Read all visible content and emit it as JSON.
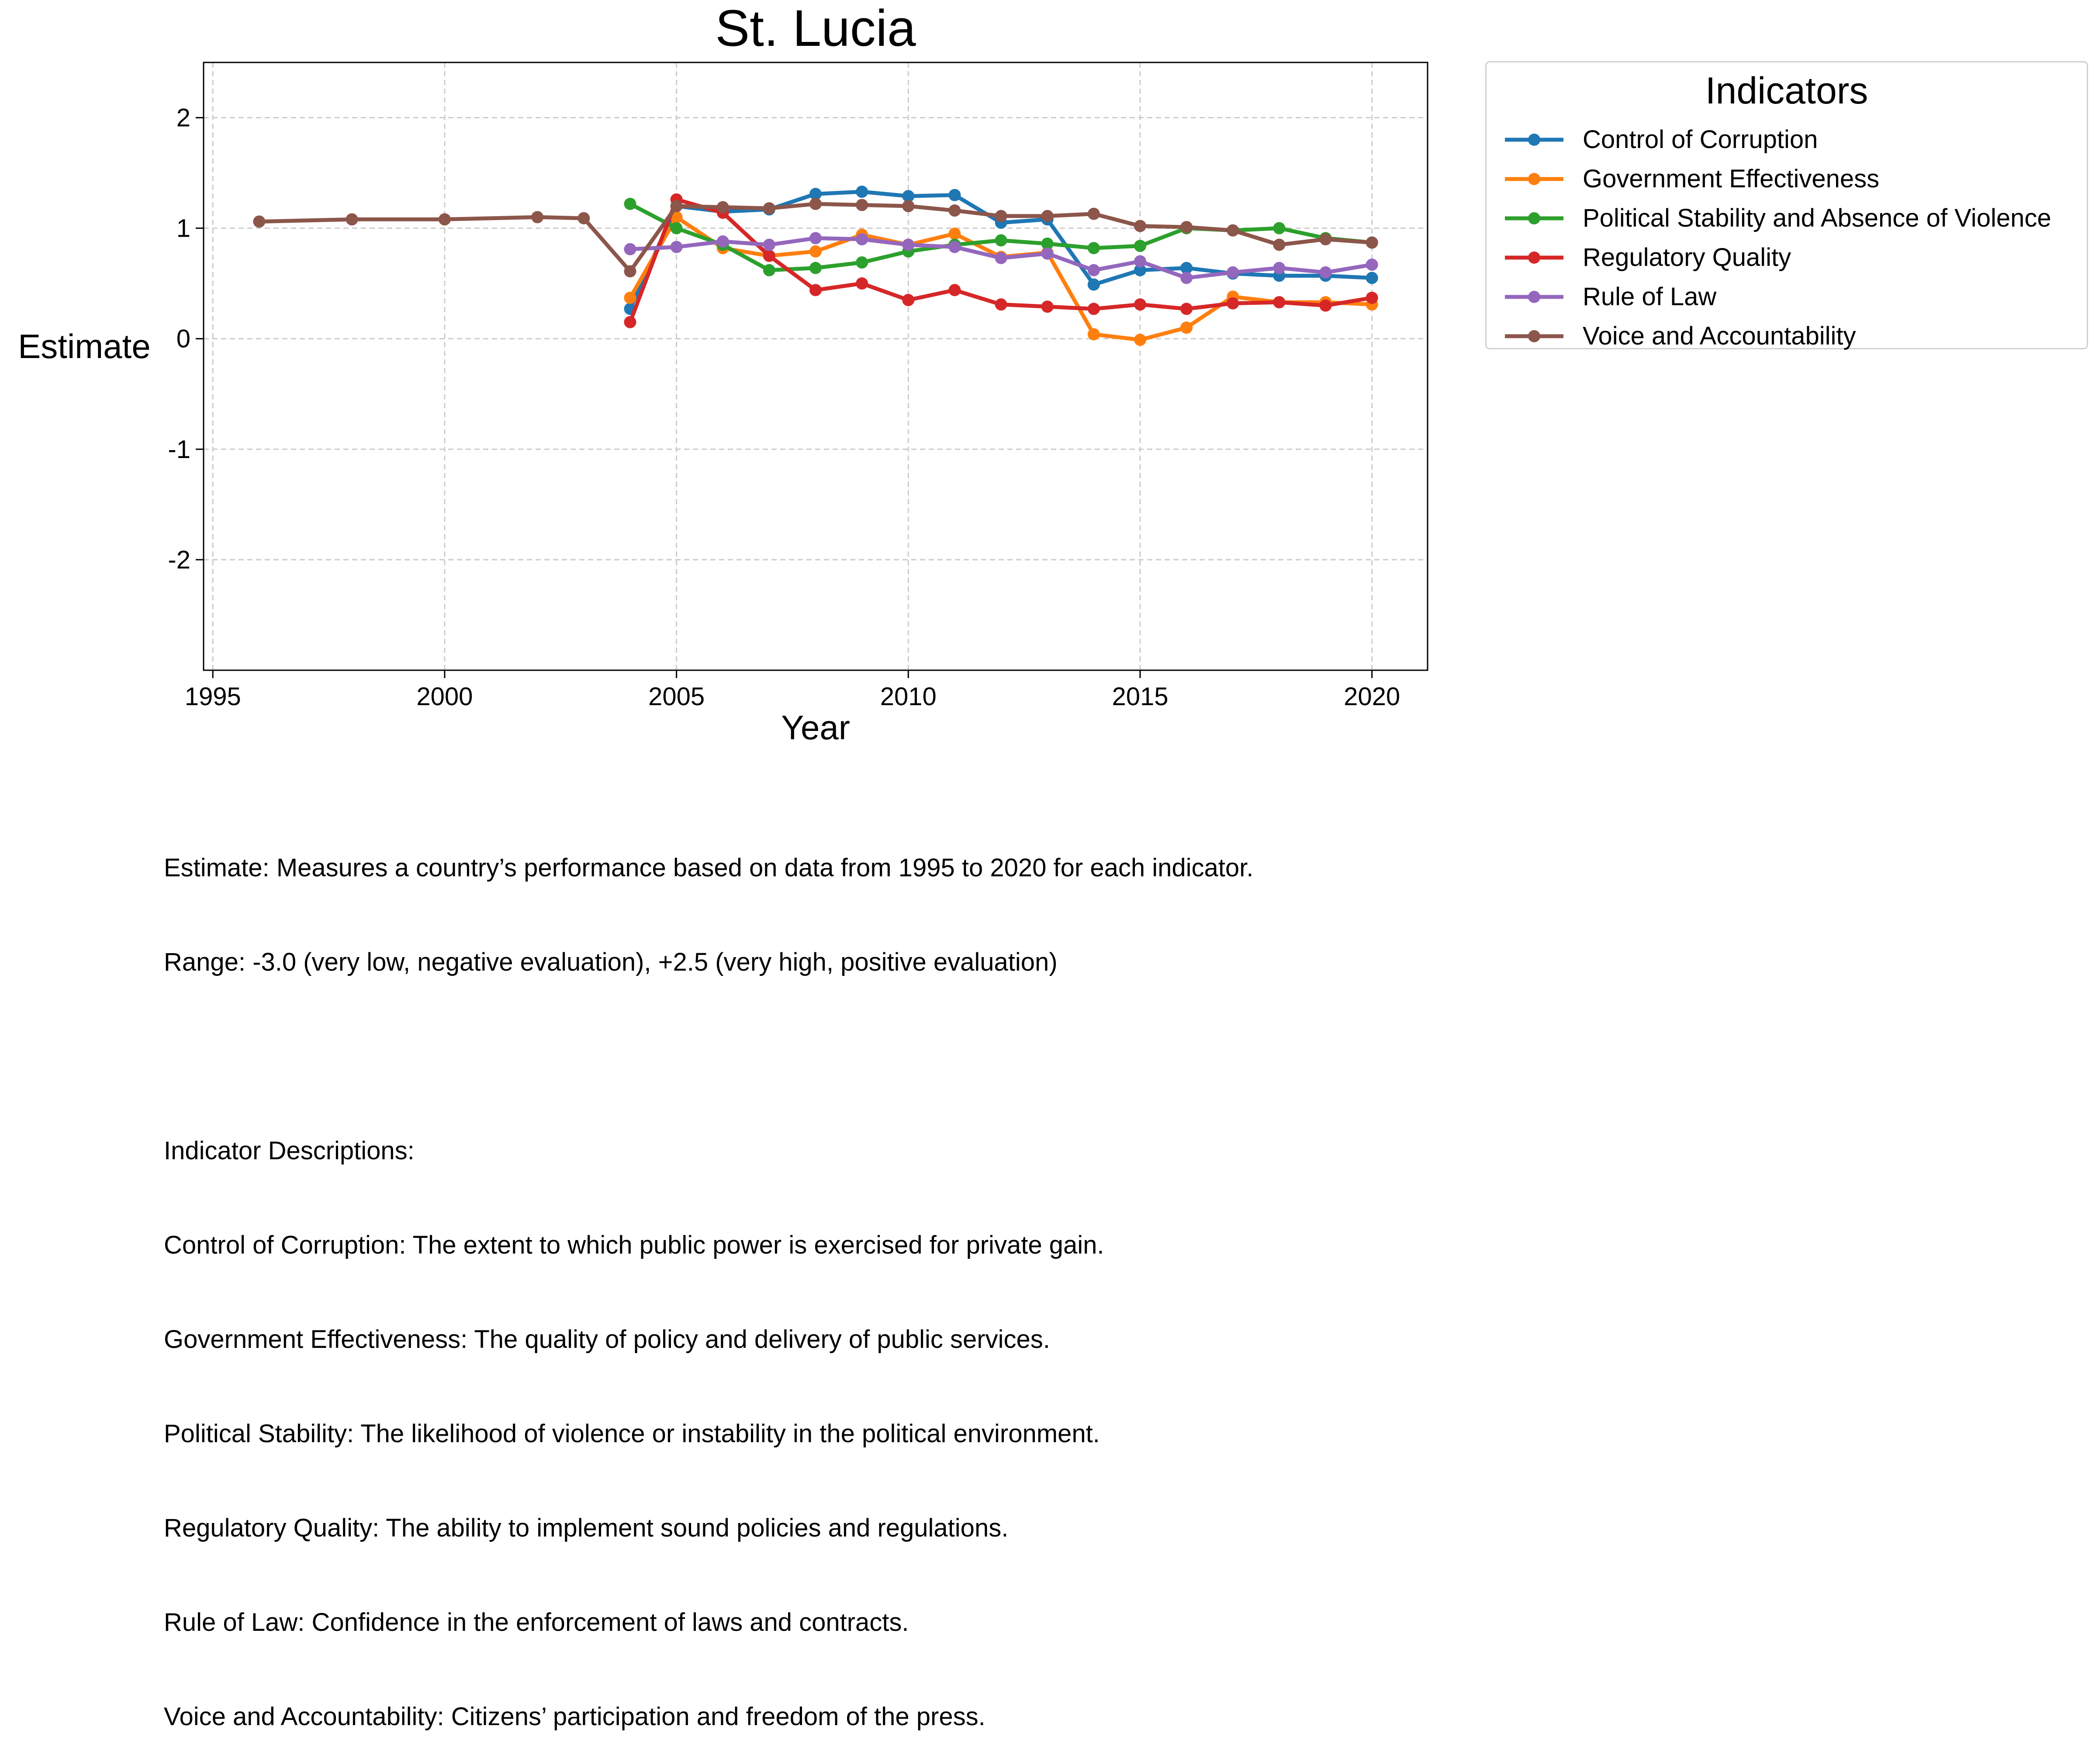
{
  "chart_data": {
    "type": "line",
    "title": "St. Lucia",
    "xlabel": "Year",
    "ylabel": "Estimate",
    "xlim": [
      1994.8,
      2021.2
    ],
    "ylim": [
      -3.0,
      2.5
    ],
    "xticks": [
      "1995",
      "2000",
      "2005",
      "2010",
      "2015",
      "2020"
    ],
    "yticks": [
      "-2",
      "-1",
      "0",
      "1",
      "2"
    ],
    "grid": true,
    "legend_title": "Indicators",
    "legend_position": "outside-right",
    "series": [
      {
        "name": "Control of Corruption",
        "color": "#1f77b4",
        "x": [
          2004,
          2005,
          2006,
          2007,
          2008,
          2009,
          2010,
          2011,
          2012,
          2013,
          2014,
          2015,
          2016,
          2017,
          2018,
          2019,
          2020
        ],
        "y": [
          0.27,
          1.2,
          1.15,
          1.17,
          1.31,
          1.33,
          1.29,
          1.3,
          1.05,
          1.08,
          0.49,
          0.62,
          0.64,
          0.59,
          0.57,
          0.57,
          0.55
        ]
      },
      {
        "name": "Government Effectiveness",
        "color": "#ff7f0e",
        "x": [
          2004,
          2005,
          2006,
          2007,
          2008,
          2009,
          2010,
          2011,
          2012,
          2013,
          2014,
          2015,
          2016,
          2017,
          2018,
          2019,
          2020
        ],
        "y": [
          0.37,
          1.1,
          0.82,
          0.75,
          0.79,
          0.94,
          0.85,
          0.95,
          0.74,
          0.78,
          0.04,
          -0.01,
          0.1,
          0.38,
          0.33,
          0.33,
          0.31
        ]
      },
      {
        "name": "Political Stability and Absence of Violence",
        "color": "#2ca02c",
        "x": [
          2004,
          2005,
          2006,
          2007,
          2008,
          2009,
          2010,
          2011,
          2012,
          2013,
          2014,
          2015,
          2016,
          2017,
          2018,
          2019,
          2020
        ],
        "y": [
          1.22,
          1.0,
          0.85,
          0.62,
          0.64,
          0.69,
          0.79,
          0.85,
          0.89,
          0.86,
          0.82,
          0.84,
          1.0,
          0.98,
          1.0,
          0.91,
          0.87
        ]
      },
      {
        "name": "Regulatory Quality",
        "color": "#d62728",
        "x": [
          2004,
          2005,
          2006,
          2007,
          2008,
          2009,
          2010,
          2011,
          2012,
          2013,
          2014,
          2015,
          2016,
          2017,
          2018,
          2019,
          2020
        ],
        "y": [
          0.15,
          1.26,
          1.14,
          0.75,
          0.44,
          0.5,
          0.35,
          0.44,
          0.31,
          0.29,
          0.27,
          0.31,
          0.27,
          0.32,
          0.33,
          0.3,
          0.37
        ]
      },
      {
        "name": "Rule of Law",
        "color": "#9467bd",
        "x": [
          2004,
          2005,
          2006,
          2007,
          2008,
          2009,
          2010,
          2011,
          2012,
          2013,
          2014,
          2015,
          2016,
          2017,
          2018,
          2019,
          2020
        ],
        "y": [
          0.81,
          0.83,
          0.88,
          0.85,
          0.91,
          0.9,
          0.85,
          0.83,
          0.73,
          0.77,
          0.62,
          0.7,
          0.55,
          0.6,
          0.64,
          0.6,
          0.67
        ]
      },
      {
        "name": "Voice and Accountability",
        "color": "#8c564b",
        "x": [
          1996,
          1998,
          2000,
          2002,
          2003,
          2004,
          2005,
          2006,
          2007,
          2008,
          2009,
          2010,
          2011,
          2012,
          2013,
          2014,
          2015,
          2016,
          2017,
          2018,
          2019,
          2020
        ],
        "y": [
          1.06,
          1.08,
          1.08,
          1.1,
          1.09,
          0.61,
          1.2,
          1.19,
          1.18,
          1.22,
          1.21,
          1.2,
          1.16,
          1.11,
          1.11,
          1.13,
          1.02,
          1.01,
          0.98,
          0.85,
          0.9,
          0.87
        ]
      }
    ]
  },
  "notes": {
    "line1": "Estimate: Measures a country’s performance based on data from 1995 to 2020 for each indicator.",
    "line2": "Range: -3.0 (very low, negative evaluation), +2.5 (very high, positive evaluation)",
    "heading": "Indicator Descriptions:",
    "desc": [
      "Control of Corruption: The extent to which public power is exercised for private gain.",
      "Government Effectiveness: The quality of policy and delivery of public services.",
      "Political Stability: The likelihood of violence or instability in the political environment.",
      "Regulatory Quality: The ability to implement sound policies and regulations.",
      "Rule of Law: Confidence in the enforcement of laws and contracts.",
      "Voice and Accountability: Citizens’ participation and freedom of the press."
    ]
  }
}
